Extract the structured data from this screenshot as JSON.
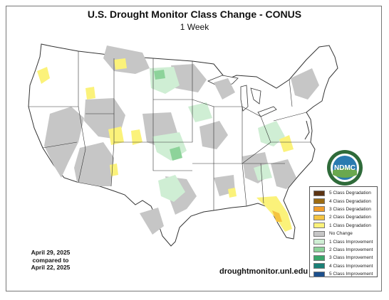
{
  "title": "U.S. Drought Monitor Class Change - CONUS",
  "subtitle": "1 Week",
  "comparison": {
    "line1": "April 29, 2025",
    "line2": "compared to",
    "line3": "April 22, 2025"
  },
  "url": "droughtmonitor.unl.edu",
  "logo": {
    "text": "NDMC",
    "icon": "ndmc-seal-logo",
    "seal_text": "National Drought Mitigation Center - University of Nebraska"
  },
  "legend": [
    {
      "label": "5 Class Degradation",
      "color": "#5b3413"
    },
    {
      "label": "4 Class Degradation",
      "color": "#9c6b12"
    },
    {
      "label": "3 Class Degradation",
      "color": "#f29d2b"
    },
    {
      "label": "2 Class Degradation",
      "color": "#f5c441"
    },
    {
      "label": "1 Class Degradation",
      "color": "#fbf27a"
    },
    {
      "label": "No Change",
      "color": "#c6c6c6"
    },
    {
      "label": "1 Class Improvement",
      "color": "#cfeed4"
    },
    {
      "label": "2 Class Improvement",
      "color": "#8dd39a"
    },
    {
      "label": "3 Class Improvement",
      "color": "#3aa76b"
    },
    {
      "label": "4 Class Improvement",
      "color": "#1a8077"
    },
    {
      "label": "5 Class Improvement",
      "color": "#1c4f8c"
    }
  ]
}
